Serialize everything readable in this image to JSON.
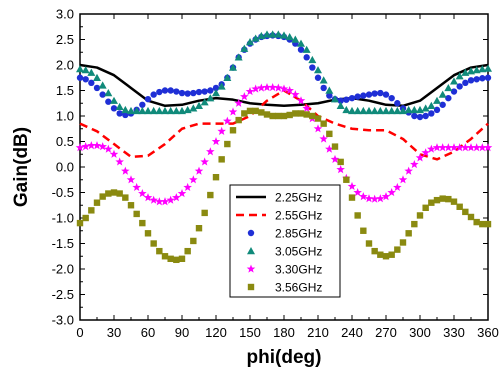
{
  "chart_data": {
    "type": "line",
    "title": "",
    "xlabel": "phi(deg)",
    "ylabel": "Gain(dB)",
    "xlim": [
      0,
      360
    ],
    "ylim": [
      -3.0,
      3.0
    ],
    "x_ticks": [
      0,
      30,
      60,
      90,
      120,
      150,
      180,
      210,
      240,
      270,
      300,
      330,
      360
    ],
    "y_ticks": [
      -3.0,
      -2.5,
      -2.0,
      -1.5,
      -1.0,
      -0.5,
      0.0,
      0.5,
      1.0,
      1.5,
      2.0,
      2.5,
      3.0
    ],
    "grid": false,
    "legend_position": "lower-center",
    "series": [
      {
        "name": "2.25GHz",
        "style": "solid-line",
        "color": "#000000",
        "x": [
          0,
          15,
          30,
          45,
          60,
          75,
          90,
          105,
          120,
          135,
          150,
          165,
          180,
          195,
          210,
          225,
          240,
          255,
          270,
          285,
          300,
          315,
          330,
          345,
          360
        ],
        "values": [
          2.0,
          1.95,
          1.8,
          1.55,
          1.3,
          1.2,
          1.22,
          1.3,
          1.35,
          1.32,
          1.25,
          1.22,
          1.2,
          1.22,
          1.25,
          1.32,
          1.35,
          1.3,
          1.22,
          1.2,
          1.3,
          1.55,
          1.8,
          1.95,
          2.0
        ]
      },
      {
        "name": "2.55GHz",
        "style": "dashed-line",
        "color": "#ff0000",
        "x": [
          0,
          15,
          30,
          45,
          60,
          75,
          90,
          105,
          120,
          135,
          150,
          165,
          180,
          195,
          210,
          225,
          240,
          255,
          270,
          285,
          300,
          315,
          330,
          345,
          360
        ],
        "values": [
          0.85,
          0.7,
          0.45,
          0.2,
          0.22,
          0.45,
          0.75,
          0.85,
          0.85,
          0.85,
          1.0,
          1.3,
          1.5,
          1.3,
          1.0,
          0.85,
          0.75,
          0.72,
          0.72,
          0.55,
          0.25,
          0.15,
          0.3,
          0.55,
          0.85
        ]
      },
      {
        "name": "2.85GHz",
        "style": "circle",
        "color": "#1f2fd6",
        "x": [
          0,
          5,
          10,
          15,
          20,
          25,
          30,
          35,
          40,
          45,
          50,
          55,
          60,
          65,
          70,
          75,
          80,
          85,
          90,
          95,
          100,
          105,
          110,
          115,
          120,
          125,
          130,
          135,
          140,
          145,
          150,
          155,
          160,
          165,
          170,
          175,
          180,
          185,
          190,
          195,
          200,
          205,
          210,
          215,
          220,
          225,
          230,
          235,
          240,
          245,
          250,
          255,
          260,
          265,
          270,
          275,
          280,
          285,
          290,
          295,
          300,
          305,
          310,
          315,
          320,
          325,
          330,
          335,
          340,
          345,
          350,
          355,
          360
        ],
        "values": [
          1.75,
          1.72,
          1.65,
          1.55,
          1.42,
          1.28,
          1.15,
          1.05,
          1.02,
          1.05,
          1.12,
          1.22,
          1.33,
          1.42,
          1.47,
          1.5,
          1.5,
          1.48,
          1.45,
          1.44,
          1.45,
          1.47,
          1.48,
          1.5,
          1.55,
          1.62,
          1.75,
          1.95,
          2.15,
          2.3,
          2.42,
          2.5,
          2.55,
          2.57,
          2.58,
          2.57,
          2.55,
          2.5,
          2.42,
          2.3,
          2.15,
          1.95,
          1.75,
          1.55,
          1.4,
          1.33,
          1.3,
          1.32,
          1.35,
          1.38,
          1.4,
          1.42,
          1.44,
          1.45,
          1.42,
          1.35,
          1.25,
          1.15,
          1.07,
          1.0,
          0.98,
          1.0,
          1.05,
          1.12,
          1.22,
          1.35,
          1.48,
          1.58,
          1.65,
          1.7,
          1.72,
          1.74,
          1.75
        ]
      },
      {
        "name": "3.05GHz",
        "style": "triangle",
        "color": "#108a7a",
        "x": [
          0,
          5,
          10,
          15,
          20,
          25,
          30,
          35,
          40,
          45,
          50,
          55,
          60,
          65,
          70,
          75,
          80,
          85,
          90,
          95,
          100,
          105,
          110,
          115,
          120,
          125,
          130,
          135,
          140,
          145,
          150,
          155,
          160,
          165,
          170,
          175,
          180,
          185,
          190,
          195,
          200,
          205,
          210,
          215,
          220,
          225,
          230,
          235,
          240,
          245,
          250,
          255,
          260,
          265,
          270,
          275,
          280,
          285,
          290,
          295,
          300,
          305,
          310,
          315,
          320,
          325,
          330,
          335,
          340,
          345,
          350,
          355,
          360
        ],
        "values": [
          1.92,
          1.9,
          1.85,
          1.75,
          1.6,
          1.45,
          1.3,
          1.18,
          1.12,
          1.1,
          1.1,
          1.1,
          1.1,
          1.1,
          1.1,
          1.1,
          1.1,
          1.1,
          1.1,
          1.12,
          1.15,
          1.2,
          1.27,
          1.35,
          1.45,
          1.58,
          1.75,
          1.95,
          2.15,
          2.32,
          2.45,
          2.52,
          2.57,
          2.6,
          2.6,
          2.6,
          2.58,
          2.55,
          2.5,
          2.42,
          2.3,
          2.1,
          1.9,
          1.7,
          1.5,
          1.33,
          1.2,
          1.12,
          1.1,
          1.1,
          1.1,
          1.1,
          1.1,
          1.1,
          1.1,
          1.1,
          1.1,
          1.1,
          1.12,
          1.12,
          1.12,
          1.15,
          1.2,
          1.3,
          1.42,
          1.55,
          1.68,
          1.78,
          1.85,
          1.88,
          1.9,
          1.92,
          1.93
        ]
      },
      {
        "name": "3.30GHz",
        "style": "star",
        "color": "#ff00ff",
        "x": [
          0,
          5,
          10,
          15,
          20,
          25,
          30,
          35,
          40,
          45,
          50,
          55,
          60,
          65,
          70,
          75,
          80,
          85,
          90,
          95,
          100,
          105,
          110,
          115,
          120,
          125,
          130,
          135,
          140,
          145,
          150,
          155,
          160,
          165,
          170,
          175,
          180,
          185,
          190,
          195,
          200,
          205,
          210,
          215,
          220,
          225,
          230,
          235,
          240,
          245,
          250,
          255,
          260,
          265,
          270,
          275,
          280,
          285,
          290,
          295,
          300,
          305,
          310,
          315,
          320,
          325,
          330,
          335,
          340,
          345,
          350,
          355,
          360
        ],
        "values": [
          0.38,
          0.4,
          0.42,
          0.42,
          0.4,
          0.35,
          0.25,
          0.1,
          -0.08,
          -0.25,
          -0.4,
          -0.52,
          -0.6,
          -0.65,
          -0.68,
          -0.68,
          -0.65,
          -0.6,
          -0.52,
          -0.4,
          -0.25,
          -0.08,
          0.1,
          0.3,
          0.5,
          0.7,
          0.9,
          1.08,
          1.25,
          1.38,
          1.48,
          1.53,
          1.55,
          1.56,
          1.56,
          1.55,
          1.53,
          1.5,
          1.42,
          1.3,
          1.15,
          0.95,
          0.75,
          0.55,
          0.35,
          0.15,
          -0.05,
          -0.22,
          -0.38,
          -0.5,
          -0.58,
          -0.62,
          -0.63,
          -0.62,
          -0.58,
          -0.5,
          -0.4,
          -0.25,
          -0.08,
          0.05,
          0.18,
          0.28,
          0.35,
          0.38,
          0.38,
          0.38,
          0.38,
          0.38,
          0.38,
          0.38,
          0.38,
          0.38,
          0.38
        ]
      },
      {
        "name": "3.56GHz",
        "style": "square",
        "color": "#8a8a10",
        "x": [
          0,
          5,
          10,
          15,
          20,
          25,
          30,
          35,
          40,
          45,
          50,
          55,
          60,
          65,
          70,
          75,
          80,
          85,
          90,
          95,
          100,
          105,
          110,
          115,
          120,
          125,
          130,
          135,
          140,
          145,
          150,
          155,
          160,
          165,
          170,
          175,
          180,
          185,
          190,
          195,
          200,
          205,
          210,
          215,
          220,
          225,
          230,
          235,
          240,
          245,
          250,
          255,
          260,
          265,
          270,
          275,
          280,
          285,
          290,
          295,
          300,
          305,
          310,
          315,
          320,
          325,
          330,
          335,
          340,
          345,
          350,
          355,
          360
        ],
        "values": [
          -1.1,
          -1.0,
          -0.85,
          -0.7,
          -0.58,
          -0.52,
          -0.5,
          -0.52,
          -0.6,
          -0.75,
          -0.92,
          -1.1,
          -1.3,
          -1.5,
          -1.65,
          -1.75,
          -1.8,
          -1.82,
          -1.8,
          -1.65,
          -1.45,
          -1.2,
          -0.9,
          -0.55,
          -0.2,
          0.15,
          0.45,
          0.72,
          0.92,
          1.05,
          1.1,
          1.1,
          1.07,
          1.03,
          1.0,
          1.0,
          1.0,
          1.02,
          1.05,
          1.05,
          1.03,
          1.0,
          0.95,
          0.85,
          0.65,
          0.4,
          0.1,
          -0.25,
          -0.6,
          -0.95,
          -1.25,
          -1.5,
          -1.65,
          -1.72,
          -1.75,
          -1.72,
          -1.62,
          -1.48,
          -1.3,
          -1.12,
          -0.95,
          -0.8,
          -0.7,
          -0.65,
          -0.62,
          -0.63,
          -0.68,
          -0.78,
          -0.88,
          -0.98,
          -1.08,
          -1.12,
          -1.12
        ]
      }
    ]
  }
}
